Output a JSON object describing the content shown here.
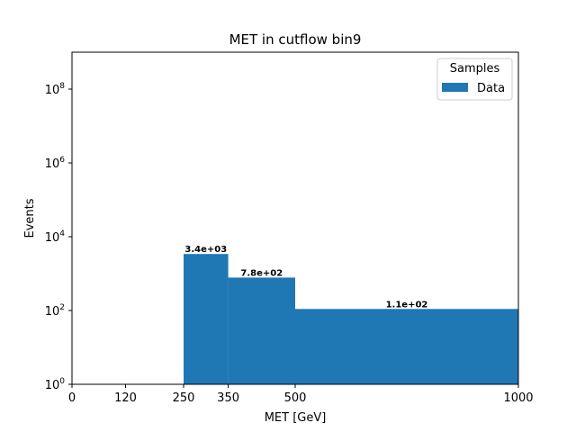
{
  "chart_data": {
    "type": "bar",
    "title": "MET in cutflow bin9",
    "xlabel": "MET [GeV]",
    "ylabel": "Events",
    "xlim": [
      0,
      1000
    ],
    "ylim_log10": [
      0,
      9
    ],
    "yscale": "log",
    "x_ticks": [
      0,
      120,
      250,
      350,
      500,
      1000
    ],
    "y_ticks": [
      {
        "exp": 0,
        "mantissa": "10",
        "power": "0"
      },
      {
        "exp": 2,
        "mantissa": "10",
        "power": "2"
      },
      {
        "exp": 4,
        "mantissa": "10",
        "power": "4"
      },
      {
        "exp": 6,
        "mantissa": "10",
        "power": "6"
      },
      {
        "exp": 8,
        "mantissa": "10",
        "power": "8"
      }
    ],
    "bins": [
      {
        "x0": 250,
        "x1": 350,
        "value": 3400,
        "label": "3.4e+03"
      },
      {
        "x0": 350,
        "x1": 500,
        "value": 780,
        "label": "7.8e+02"
      },
      {
        "x0": 500,
        "x1": 1000,
        "value": 110,
        "label": "1.1e+02"
      }
    ],
    "series": [
      {
        "name": "Data",
        "color": "#1f77b4"
      }
    ],
    "legend": {
      "title": "Samples",
      "placement": "top-right"
    },
    "grid": false
  }
}
